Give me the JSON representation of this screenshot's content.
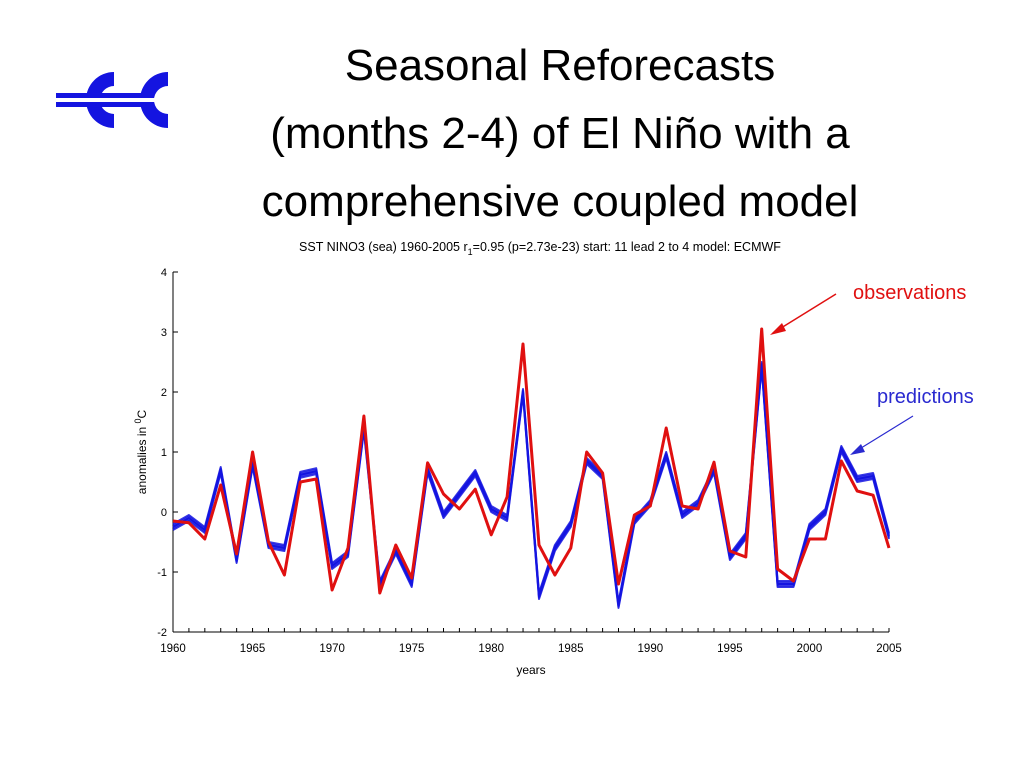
{
  "slide": {
    "title_lines": [
      "Seasonal Reforecasts",
      "(months 2-4) of El Niño with a",
      "comprehensive coupled model"
    ]
  },
  "logo": {
    "icon": "ecmwf-logo",
    "color": "#1414e0"
  },
  "callouts": {
    "observations": "observations",
    "predictions": "predictions",
    "observations_color": "#e01010",
    "predictions_color": "#2a2ad0"
  },
  "chart_data": {
    "type": "line",
    "title_parts": {
      "pre": "SST  NINO3 (sea)  1960-2005  r",
      "sub": "1",
      "post": "=0.95 (p=2.73e-23)  start: 11 lead 2 to 4  model: ECMWF"
    },
    "xlabel": "years",
    "ylabel": "anomalies in",
    "ylabel_superscript": "0",
    "ylabel_unit": "C",
    "xlim": [
      1960,
      2005
    ],
    "ylim": [
      -2,
      4
    ],
    "xticks": [
      1960,
      1965,
      1970,
      1975,
      1980,
      1985,
      1990,
      1995,
      2000,
      2005
    ],
    "yticks": [
      -2,
      -1,
      0,
      1,
      2,
      3,
      4
    ],
    "grid": false,
    "x": [
      1960,
      1961,
      1962,
      1963,
      1964,
      1965,
      1966,
      1967,
      1968,
      1969,
      1970,
      1971,
      1972,
      1973,
      1974,
      1975,
      1976,
      1977,
      1978,
      1979,
      1980,
      1981,
      1982,
      1983,
      1984,
      1985,
      1986,
      1987,
      1988,
      1989,
      1990,
      1991,
      1992,
      1993,
      1994,
      1995,
      1996,
      1997,
      1998,
      1999,
      2000,
      2001,
      2002,
      2003,
      2004,
      2005
    ],
    "series": [
      {
        "role": "observations",
        "color": "#e01010",
        "values": [
          -0.15,
          -0.18,
          -0.45,
          0.45,
          -0.7,
          1.0,
          -0.5,
          -1.05,
          0.5,
          0.55,
          -1.3,
          -0.6,
          1.6,
          -1.35,
          -0.55,
          -1.1,
          0.82,
          0.3,
          0.05,
          0.38,
          -0.38,
          0.25,
          2.8,
          -0.55,
          -1.05,
          -0.6,
          1.0,
          0.65,
          -1.2,
          -0.05,
          0.1,
          1.4,
          0.1,
          0.05,
          0.83,
          -0.65,
          -0.75,
          3.05,
          -0.95,
          -1.15,
          -0.45,
          -0.45,
          0.85,
          0.35,
          0.28,
          -0.6
        ]
      },
      {
        "role": "predictions",
        "color": "#1414e0",
        "values": [
          -0.25,
          -0.1,
          -0.3,
          0.7,
          -0.8,
          0.8,
          -0.55,
          -0.6,
          0.62,
          0.68,
          -0.9,
          -0.7,
          1.4,
          -1.2,
          -0.65,
          -1.2,
          0.7,
          -0.05,
          0.3,
          0.65,
          0.05,
          -0.1,
          2.0,
          -1.4,
          -0.6,
          -0.2,
          0.85,
          0.6,
          -1.55,
          -0.15,
          0.15,
          0.95,
          -0.05,
          0.15,
          0.7,
          -0.75,
          -0.4,
          2.45,
          -1.2,
          -1.2,
          -0.25,
          0.0,
          1.05,
          0.55,
          0.6,
          -0.4
        ]
      }
    ]
  }
}
